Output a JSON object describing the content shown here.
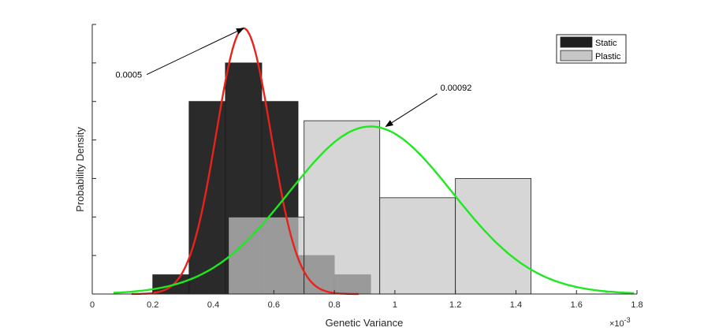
{
  "chart_data": {
    "type": "bar",
    "xlabel": "Genetic Variance",
    "ylabel": "Probability Density",
    "x_multiplier_label": "×10",
    "x_multiplier_exponent": "-3",
    "xlim": [
      0,
      1.8
    ],
    "ylim": [
      0,
      7
    ],
    "x_ticks": [
      "0",
      "0.2",
      "0.4",
      "0.6",
      "0.8",
      "1",
      "1.2",
      "1.4",
      "1.6",
      "1.8"
    ],
    "legend_position": "top-right",
    "grid": false,
    "series": [
      {
        "name": "Static",
        "color": "#1f1f1f",
        "bins": [
          {
            "x0": 0.32,
            "x1": 0.44,
            "value": 5.0
          },
          {
            "x0": 0.44,
            "x1": 0.56,
            "value": 6.0
          },
          {
            "x0": 0.56,
            "x1": 0.68,
            "value": 5.0
          },
          {
            "x0": 0.68,
            "x1": 0.8,
            "value": 1.0
          },
          {
            "x0": 0.8,
            "x1": 0.92,
            "value": 0.5
          },
          {
            "x0": 0.2,
            "x1": 0.32,
            "value": 0.5
          }
        ],
        "curve": {
          "type": "normal",
          "mean": 0.0005,
          "sd": 0.09,
          "peak": 6.9,
          "color": "#e8231b",
          "x_from": 0.13,
          "x_to": 0.88
        }
      },
      {
        "name": "Plastic",
        "color": "#c6c6c6",
        "bins": [
          {
            "x0": 0.45,
            "x1": 0.7,
            "value": 2.0
          },
          {
            "x0": 0.7,
            "x1": 0.95,
            "value": 4.5
          },
          {
            "x0": 0.95,
            "x1": 1.2,
            "value": 2.5
          },
          {
            "x0": 1.2,
            "x1": 1.45,
            "value": 3.0
          }
        ],
        "curve": {
          "type": "normal",
          "mean": 0.00092,
          "sd": 0.27,
          "peak": 4.35,
          "color": "#1ee81e",
          "x_from": 0.07,
          "x_to": 1.79
        }
      }
    ],
    "annotations": [
      {
        "text": "0.0005",
        "target_x": 0.5,
        "target_y": 6.9,
        "from_x": 0.18,
        "from_y": 5.7
      },
      {
        "text": "0.00092",
        "target_x": 0.97,
        "target_y": 4.35,
        "from_x": 1.14,
        "from_y": 5.2
      }
    ]
  }
}
